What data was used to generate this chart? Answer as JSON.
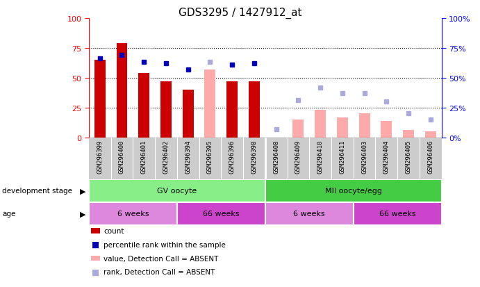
{
  "title": "GDS3295 / 1427912_at",
  "samples": [
    "GSM296399",
    "GSM296400",
    "GSM296401",
    "GSM296402",
    "GSM296394",
    "GSM296395",
    "GSM296396",
    "GSM296398",
    "GSM296408",
    "GSM296409",
    "GSM296410",
    "GSM296411",
    "GSM296403",
    "GSM296404",
    "GSM296405",
    "GSM296406"
  ],
  "count_values": [
    65,
    79,
    54,
    47,
    40,
    null,
    47,
    47,
    null,
    null,
    null,
    null,
    null,
    null,
    null,
    null
  ],
  "count_absent": [
    null,
    null,
    null,
    null,
    null,
    57,
    null,
    null,
    null,
    15,
    23,
    17,
    20,
    14,
    6,
    5
  ],
  "rank_values": [
    66,
    69,
    63,
    62,
    57,
    null,
    61,
    62,
    null,
    null,
    null,
    null,
    null,
    null,
    null,
    null
  ],
  "rank_absent": [
    null,
    null,
    null,
    null,
    null,
    63,
    null,
    null,
    7,
    31,
    42,
    37,
    37,
    30,
    20,
    15
  ],
  "ylim_left": [
    0,
    100
  ],
  "ylim_right": [
    0,
    100
  ],
  "yticks_left": [
    0,
    25,
    50,
    75,
    100
  ],
  "yticks_right": [
    0,
    25,
    50,
    75,
    100
  ],
  "bar_color_present": "#cc0000",
  "bar_color_absent": "#ffaaaa",
  "rank_color_present": "#0000bb",
  "rank_color_absent": "#aaaadd",
  "dev_stage_color_gv": "#88ee88",
  "dev_stage_color_mii": "#44cc44",
  "age_color_6w": "#dd66dd",
  "age_color_66w": "#cc44cc",
  "sample_bg_color": "#cccccc",
  "dev_stages": [
    {
      "label": "GV oocyte",
      "start": 0,
      "end": 7,
      "color": "#88ee88"
    },
    {
      "label": "MII oocyte/egg",
      "start": 8,
      "end": 15,
      "color": "#44cc44"
    }
  ],
  "age_groups": [
    {
      "label": "6 weeks",
      "start": 0,
      "end": 3,
      "color": "#dd88dd"
    },
    {
      "label": "66 weeks",
      "start": 4,
      "end": 7,
      "color": "#cc44cc"
    },
    {
      "label": "6 weeks",
      "start": 8,
      "end": 11,
      "color": "#dd88dd"
    },
    {
      "label": "66 weeks",
      "start": 12,
      "end": 15,
      "color": "#cc44cc"
    }
  ],
  "legend_items": [
    {
      "label": "count",
      "color": "#cc0000",
      "type": "bar"
    },
    {
      "label": "percentile rank within the sample",
      "color": "#0000bb",
      "type": "square"
    },
    {
      "label": "value, Detection Call = ABSENT",
      "color": "#ffaaaa",
      "type": "bar"
    },
    {
      "label": "rank, Detection Call = ABSENT",
      "color": "#aaaadd",
      "type": "square"
    }
  ]
}
